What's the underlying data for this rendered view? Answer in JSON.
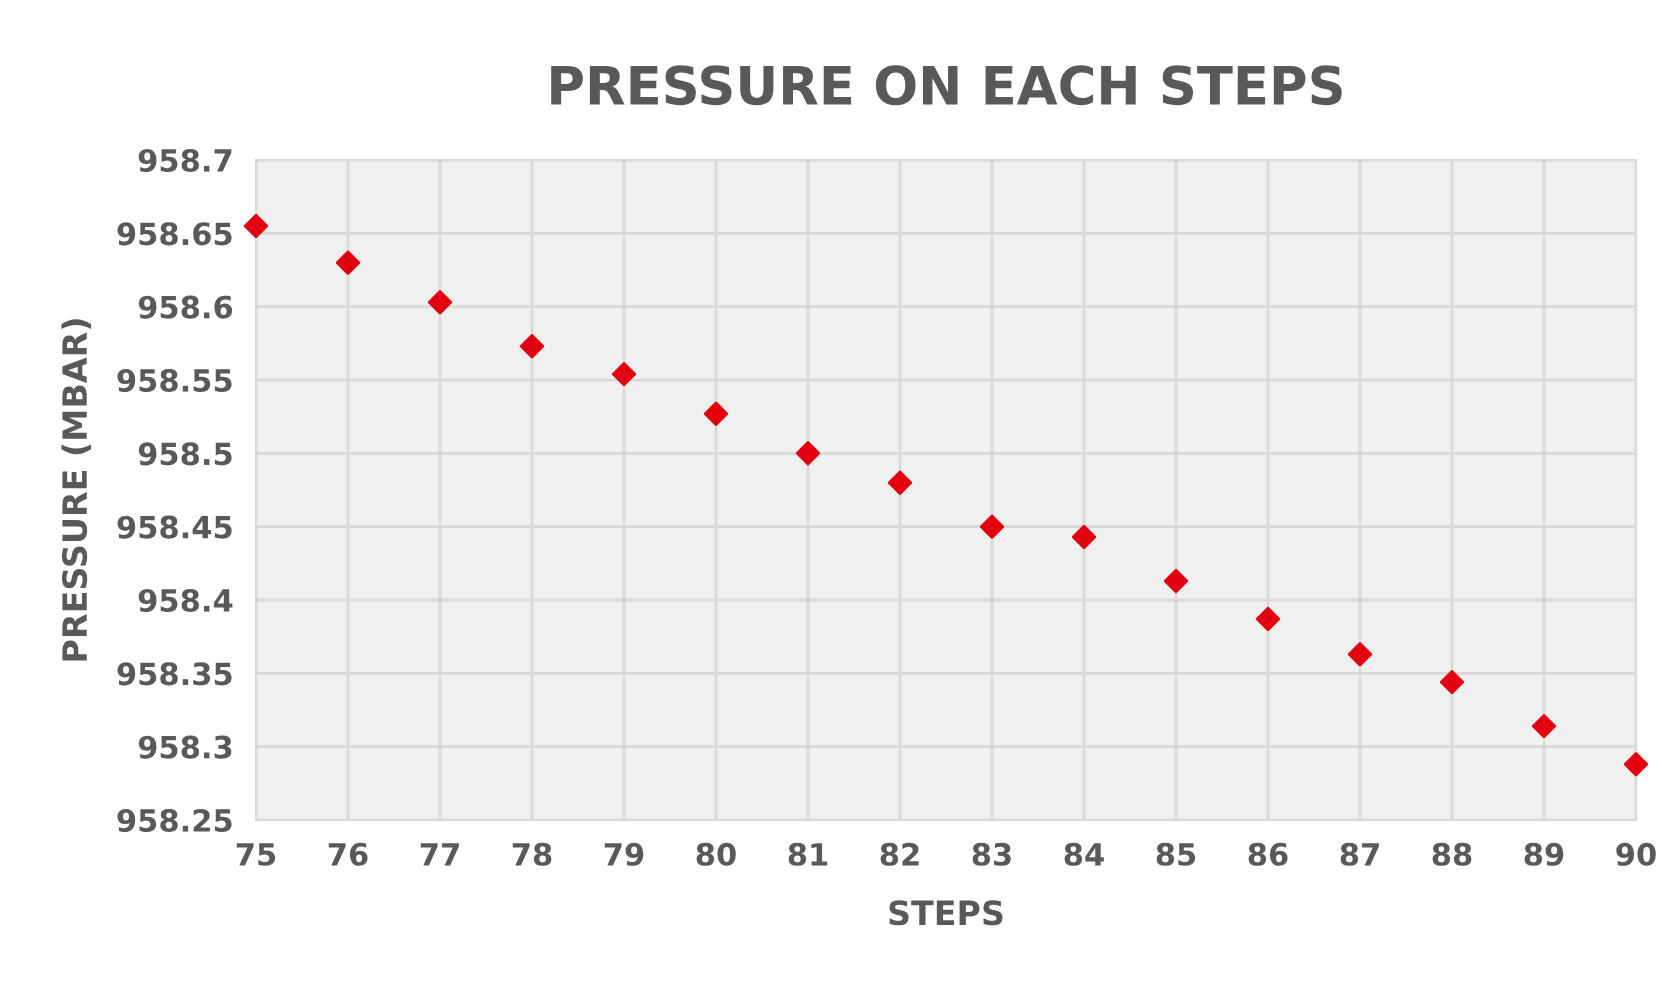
{
  "chart_data": {
    "type": "scatter",
    "title": "PRESSURE ON EACH STEPS",
    "xlabel": "STEPS",
    "ylabel": "PRESSURE (MBAR)",
    "x": [
      75,
      76,
      77,
      78,
      79,
      80,
      81,
      82,
      83,
      84,
      85,
      86,
      87,
      88,
      89,
      90
    ],
    "series": [
      {
        "color": "#e3000f",
        "values": [
          958.655,
          958.63,
          958.603,
          958.573,
          958.554,
          958.527,
          958.5,
          958.48,
          958.45,
          958.443,
          958.413,
          958.387,
          958.363,
          958.344,
          958.314,
          958.288
        ]
      }
    ],
    "xlim": [
      75,
      90
    ],
    "xticks": [
      75,
      76,
      77,
      78,
      79,
      80,
      81,
      82,
      83,
      84,
      85,
      86,
      87,
      88,
      89,
      90
    ],
    "ylim": [
      958.25,
      958.7
    ],
    "yticks": [
      958.25,
      958.3,
      958.35,
      958.4,
      958.45,
      958.5,
      958.55,
      958.6,
      958.65,
      958.7
    ],
    "grid": true,
    "marker": "diamond",
    "legend": false
  }
}
